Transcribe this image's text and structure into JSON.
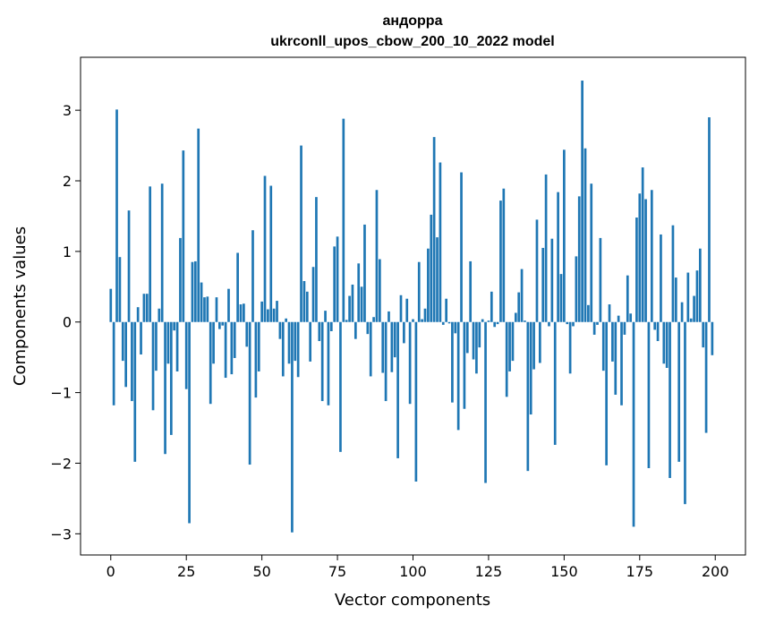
{
  "chart_data": {
    "type": "bar",
    "title": "андорра",
    "subtitle": "ukrconll_upos_cbow_200_10_2022 model",
    "xlabel": "Vector components",
    "ylabel": "Components values",
    "xlim": [
      -10,
      210
    ],
    "ylim": [
      -3.3,
      3.75
    ],
    "xticks": [
      0,
      25,
      50,
      75,
      100,
      125,
      150,
      175,
      200
    ],
    "yticks": [
      -3,
      -2,
      -1,
      0,
      1,
      2,
      3
    ],
    "bar_color": "#1f77b4",
    "grid": false,
    "legend": "none",
    "x": [
      0,
      1,
      2,
      3,
      4,
      5,
      6,
      7,
      8,
      9,
      10,
      11,
      12,
      13,
      14,
      15,
      16,
      17,
      18,
      19,
      20,
      21,
      22,
      23,
      24,
      25,
      26,
      27,
      28,
      29,
      30,
      31,
      32,
      33,
      34,
      35,
      36,
      37,
      38,
      39,
      40,
      41,
      42,
      43,
      44,
      45,
      46,
      47,
      48,
      49,
      50,
      51,
      52,
      53,
      54,
      55,
      56,
      57,
      58,
      59,
      60,
      61,
      62,
      63,
      64,
      65,
      66,
      67,
      68,
      69,
      70,
      71,
      72,
      73,
      74,
      75,
      76,
      77,
      78,
      79,
      80,
      81,
      82,
      83,
      84,
      85,
      86,
      87,
      88,
      89,
      90,
      91,
      92,
      93,
      94,
      95,
      96,
      97,
      98,
      99,
      100,
      101,
      102,
      103,
      104,
      105,
      106,
      107,
      108,
      109,
      110,
      111,
      112,
      113,
      114,
      115,
      116,
      117,
      118,
      119,
      120,
      121,
      122,
      123,
      124,
      125,
      126,
      127,
      128,
      129,
      130,
      131,
      132,
      133,
      134,
      135,
      136,
      137,
      138,
      139,
      140,
      141,
      142,
      143,
      144,
      145,
      146,
      147,
      148,
      149,
      150,
      151,
      152,
      153,
      154,
      155,
      156,
      157,
      158,
      159,
      160,
      161,
      162,
      163,
      164,
      165,
      166,
      167,
      168,
      169,
      170,
      171,
      172,
      173,
      174,
      175,
      176,
      177,
      178,
      179,
      180,
      181,
      182,
      183,
      184,
      185,
      186,
      187,
      188,
      189,
      190,
      191,
      192,
      193,
      194,
      195,
      196,
      197,
      198,
      199
    ],
    "values": [
      0.47,
      -1.18,
      3.01,
      0.92,
      -0.55,
      -0.92,
      1.58,
      -1.12,
      -1.98,
      0.21,
      -0.46,
      0.4,
      0.4,
      1.92,
      -1.25,
      -0.69,
      0.19,
      1.96,
      -1.87,
      -0.59,
      -1.6,
      -0.12,
      -0.7,
      1.19,
      2.43,
      -0.95,
      -2.85,
      0.85,
      0.86,
      2.74,
      0.56,
      0.35,
      0.36,
      -1.16,
      -0.59,
      0.35,
      -0.1,
      -0.05,
      -0.79,
      0.47,
      -0.74,
      -0.51,
      0.98,
      0.25,
      0.26,
      -0.35,
      -2.02,
      1.3,
      -1.07,
      -0.7,
      0.29,
      2.07,
      0.18,
      1.93,
      0.19,
      0.3,
      -0.24,
      -0.77,
      0.05,
      -0.59,
      -2.98,
      -0.55,
      -0.78,
      2.5,
      0.58,
      0.43,
      -0.56,
      0.78,
      1.77,
      -0.27,
      -1.12,
      0.16,
      -1.18,
      -0.13,
      1.07,
      1.21,
      -1.84,
      2.88,
      0.03,
      0.37,
      0.53,
      -0.24,
      0.83,
      0.5,
      1.38,
      -0.17,
      -0.77,
      0.07,
      1.87,
      0.89,
      -0.72,
      -1.12,
      0.15,
      -0.71,
      -0.5,
      -1.93,
      0.38,
      -0.3,
      0.33,
      -1.16,
      0.04,
      -2.26,
      0.85,
      0.04,
      0.19,
      1.04,
      1.52,
      2.62,
      1.2,
      2.26,
      -0.04,
      0.33,
      -0.02,
      -1.14,
      -0.16,
      -1.53,
      2.12,
      -1.23,
      -0.44,
      0.86,
      -0.53,
      -0.73,
      -0.36,
      0.04,
      -2.28,
      0.02,
      0.43,
      -0.07,
      -0.03,
      1.72,
      1.89,
      -1.06,
      -0.7,
      -0.55,
      0.13,
      0.42,
      0.75,
      0.02,
      -2.11,
      -1.31,
      -0.67,
      1.45,
      -0.58,
      1.05,
      2.09,
      -0.06,
      1.18,
      -1.74,
      1.84,
      0.68,
      2.44,
      -0.03,
      -0.73,
      -0.06,
      0.93,
      1.78,
      3.42,
      2.46,
      0.24,
      1.96,
      -0.18,
      -0.04,
      1.19,
      -0.69,
      -2.03,
      0.25,
      -0.56,
      -1.03,
      0.09,
      -1.18,
      -0.18,
      0.66,
      0.12,
      -2.9,
      1.48,
      1.82,
      2.19,
      1.74,
      -2.07,
      1.87,
      -0.11,
      -0.27,
      1.24,
      -0.59,
      -0.65,
      -2.21,
      1.37,
      0.63,
      -1.98,
      0.28,
      -2.58,
      0.7,
      0.05,
      0.37,
      0.73,
      1.04,
      -0.36,
      -1.57,
      2.9,
      -0.47
    ]
  }
}
